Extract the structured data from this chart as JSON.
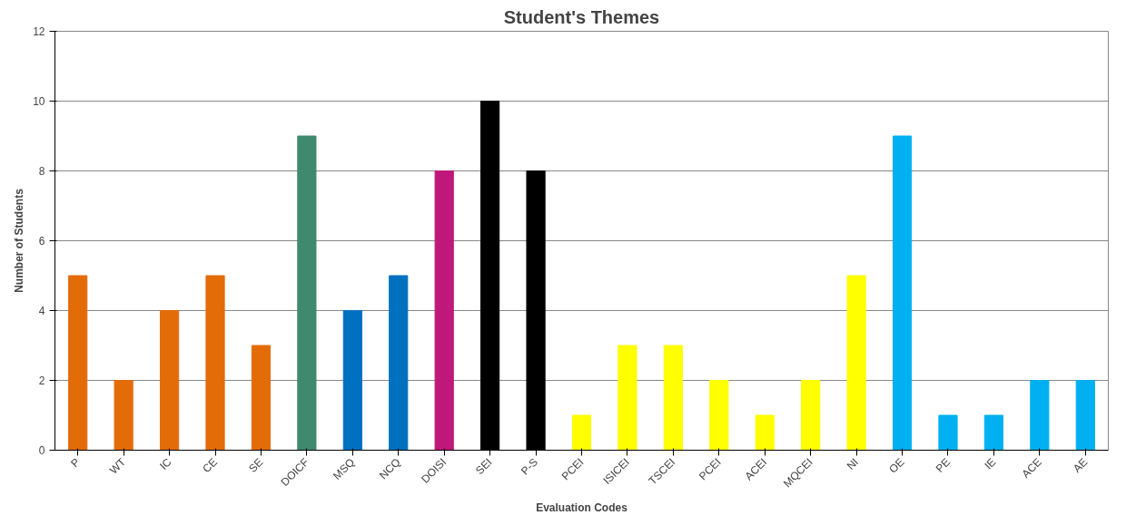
{
  "chart_data": {
    "type": "bar",
    "title": "Student's Themes",
    "xlabel": "Evaluation Codes",
    "ylabel": "Number of Students",
    "categories": [
      "P",
      "WT",
      "IC",
      "CE",
      "SE",
      "DOICF",
      "MSQ",
      "NCQ",
      "DOISI",
      "SEI",
      "P-S",
      "PCEI",
      "ISICEI",
      "TSCEI",
      "PCEI",
      "ACEI",
      "MQCEI",
      "NI",
      "OE",
      "PE",
      "IE",
      "ACE",
      "AE"
    ],
    "values": [
      5,
      2,
      4,
      5,
      3,
      9,
      4,
      5,
      8,
      10,
      8,
      1,
      3,
      3,
      2,
      1,
      2,
      5,
      9,
      1,
      1,
      2,
      2
    ],
    "colors": [
      "#e36c09",
      "#e36c09",
      "#e36c09",
      "#e36c09",
      "#e36c09",
      "#3f8a6f",
      "#0070c0",
      "#0070c0",
      "#c0187a",
      "#000000",
      "#000000",
      "#ffff00",
      "#ffff00",
      "#ffff00",
      "#ffff00",
      "#ffff00",
      "#ffff00",
      "#ffff00",
      "#00b0f0",
      "#00b0f0",
      "#00b0f0",
      "#00b0f0",
      "#00b0f0"
    ],
    "ylim": [
      0,
      12
    ],
    "yticks": [
      0,
      2,
      4,
      6,
      8,
      10,
      12
    ],
    "grid": "y"
  }
}
